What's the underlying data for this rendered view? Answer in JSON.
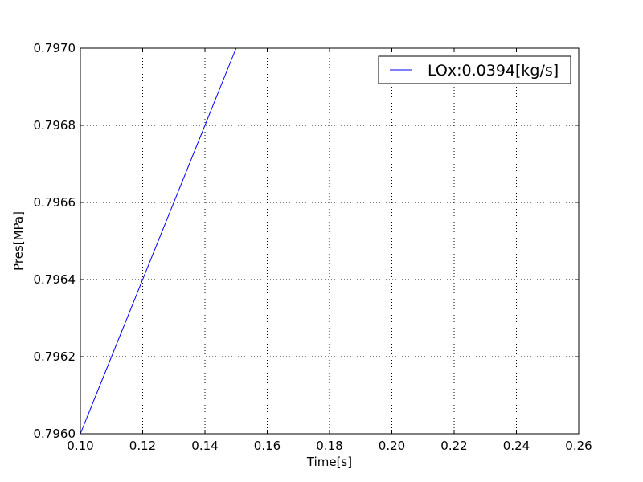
{
  "chart_data": {
    "type": "line",
    "xlabel": "Time[s]",
    "ylabel": "Pres[MPa]",
    "xlim": [
      0.1,
      0.26
    ],
    "ylim": [
      0.796,
      0.797
    ],
    "x_ticks": [
      "0.10",
      "0.12",
      "0.14",
      "0.16",
      "0.18",
      "0.20",
      "0.22",
      "0.24",
      "0.26"
    ],
    "y_ticks": [
      "0.7960",
      "0.7962",
      "0.7964",
      "0.7966",
      "0.7968",
      "0.7970"
    ],
    "grid": true,
    "legend_position": "top-right",
    "series": [
      {
        "name": "LOx:0.0394[kg/s]",
        "color": "#0000ff",
        "x": [
          0.1,
          0.15
        ],
        "y": [
          0.796,
          0.797
        ]
      }
    ]
  }
}
